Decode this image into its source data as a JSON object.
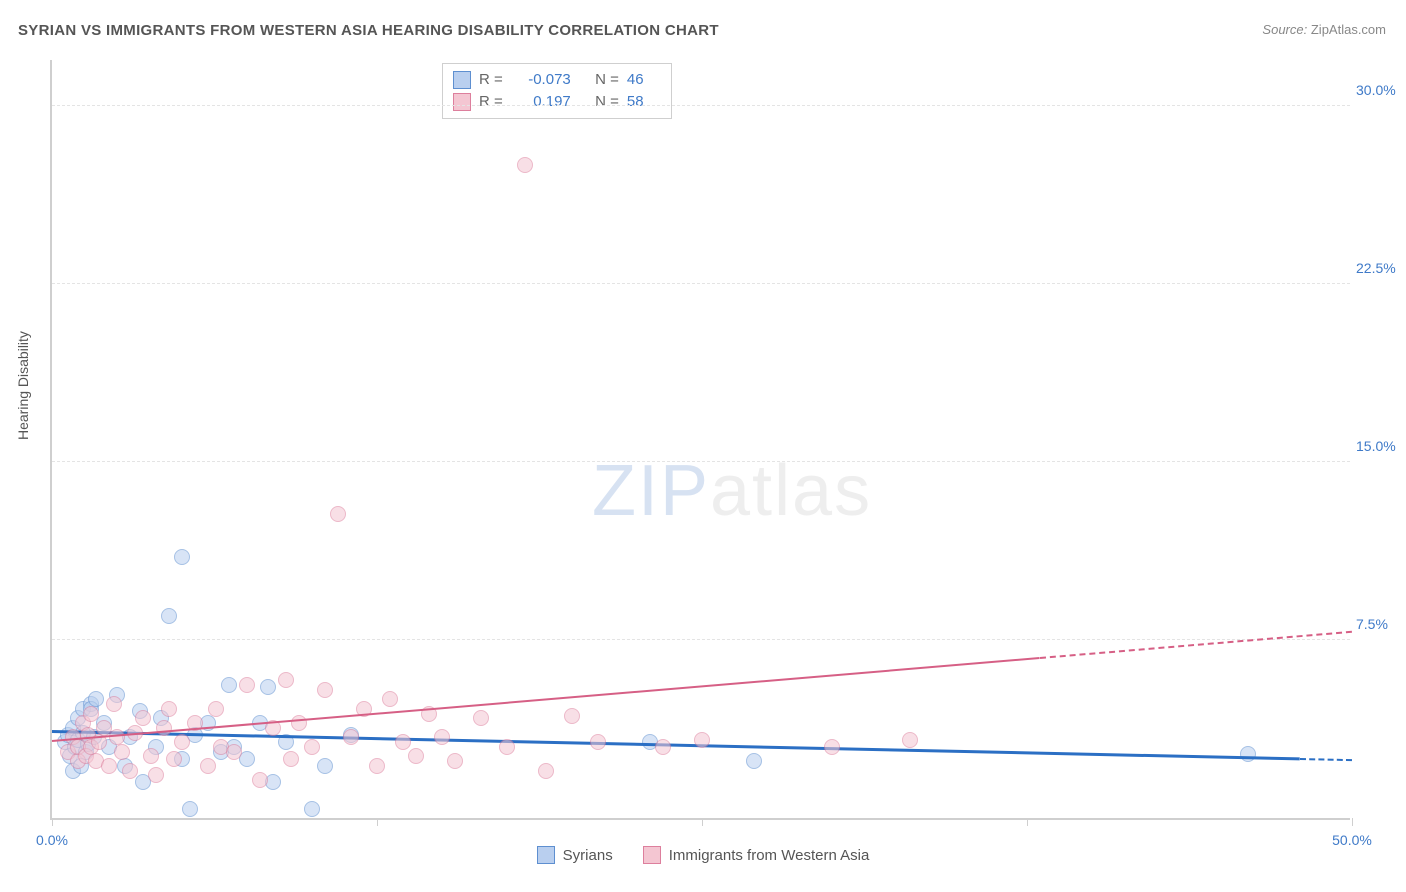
{
  "title": "SYRIAN VS IMMIGRANTS FROM WESTERN ASIA HEARING DISABILITY CORRELATION CHART",
  "source": {
    "label": "Source:",
    "name": "ZipAtlas.com"
  },
  "y_axis_title": "Hearing Disability",
  "watermark": {
    "part1": "ZIP",
    "part2": "atlas"
  },
  "chart": {
    "type": "scatter",
    "xlim": [
      0,
      50
    ],
    "ylim": [
      0,
      32
    ],
    "x_ticks": [
      0,
      12.5,
      25,
      37.5,
      50
    ],
    "x_tick_labels": [
      "0.0%",
      "",
      "",
      "",
      "50.0%"
    ],
    "y_grid": [
      7.5,
      15.0,
      22.5,
      30.0
    ],
    "y_grid_labels": [
      "7.5%",
      "15.0%",
      "22.5%",
      "30.0%"
    ],
    "background_color": "#ffffff",
    "grid_color": "#e4e4e4",
    "axis_color": "#cfcfcf",
    "tick_label_color": "#3f7ac8",
    "marker_radius": 8,
    "marker_border_width": 1.2,
    "series": [
      {
        "name": "Syrians",
        "fill": "#b9cfef",
        "stroke": "#5e8fd0",
        "fill_opacity": 0.55,
        "stats": {
          "R": "-0.073",
          "N": "46"
        },
        "trend": {
          "x1": 0,
          "y1": 3.6,
          "x2": 50,
          "y2": 2.4,
          "color": "#2b6fc4",
          "width": 2.5,
          "dash_after_x": 48
        },
        "points": [
          [
            0.5,
            3.2
          ],
          [
            0.6,
            3.5
          ],
          [
            0.7,
            2.6
          ],
          [
            0.8,
            3.8
          ],
          [
            0.8,
            2.0
          ],
          [
            0.9,
            3.0
          ],
          [
            1.0,
            4.2
          ],
          [
            1.0,
            3.3
          ],
          [
            1.1,
            2.2
          ],
          [
            1.2,
            4.6
          ],
          [
            1.2,
            3.6
          ],
          [
            1.3,
            2.8
          ],
          [
            1.4,
            3.1
          ],
          [
            1.5,
            4.8
          ],
          [
            1.5,
            4.6
          ],
          [
            1.6,
            3.4
          ],
          [
            1.7,
            5.0
          ],
          [
            2.0,
            4.0
          ],
          [
            2.2,
            3.0
          ],
          [
            2.5,
            5.2
          ],
          [
            2.8,
            2.2
          ],
          [
            3.0,
            3.4
          ],
          [
            3.4,
            4.5
          ],
          [
            3.5,
            1.5
          ],
          [
            4.0,
            3.0
          ],
          [
            4.2,
            4.2
          ],
          [
            4.5,
            8.5
          ],
          [
            5.0,
            11.0
          ],
          [
            5.0,
            2.5
          ],
          [
            5.3,
            0.4
          ],
          [
            5.5,
            3.5
          ],
          [
            6.0,
            4.0
          ],
          [
            6.5,
            2.8
          ],
          [
            6.8,
            5.6
          ],
          [
            7.0,
            3.0
          ],
          [
            7.5,
            2.5
          ],
          [
            8.0,
            4.0
          ],
          [
            8.3,
            5.5
          ],
          [
            8.5,
            1.5
          ],
          [
            9.0,
            3.2
          ],
          [
            10.0,
            0.4
          ],
          [
            10.5,
            2.2
          ],
          [
            11.5,
            3.5
          ],
          [
            23.0,
            3.2
          ],
          [
            27.0,
            2.4
          ],
          [
            46.0,
            2.7
          ]
        ]
      },
      {
        "name": "Immigrants from Western Asia",
        "fill": "#f4c6d2",
        "stroke": "#dd7f9d",
        "fill_opacity": 0.55,
        "stats": {
          "R": "0.197",
          "N": "58"
        },
        "trend": {
          "x1": 0,
          "y1": 3.2,
          "x2": 50,
          "y2": 7.8,
          "color": "#d65f85",
          "width": 2,
          "dash_after_x": 38
        },
        "points": [
          [
            0.6,
            2.8
          ],
          [
            0.8,
            3.4
          ],
          [
            1.0,
            2.4
          ],
          [
            1.0,
            3.0
          ],
          [
            1.2,
            4.0
          ],
          [
            1.3,
            2.6
          ],
          [
            1.4,
            3.5
          ],
          [
            1.5,
            4.4
          ],
          [
            1.5,
            3.0
          ],
          [
            1.7,
            2.4
          ],
          [
            1.8,
            3.2
          ],
          [
            2.0,
            3.8
          ],
          [
            2.2,
            2.2
          ],
          [
            2.4,
            4.8
          ],
          [
            2.5,
            3.4
          ],
          [
            2.7,
            2.8
          ],
          [
            3.0,
            2.0
          ],
          [
            3.2,
            3.6
          ],
          [
            3.5,
            4.2
          ],
          [
            3.8,
            2.6
          ],
          [
            4.0,
            1.8
          ],
          [
            4.3,
            3.8
          ],
          [
            4.5,
            4.6
          ],
          [
            4.7,
            2.5
          ],
          [
            5.0,
            3.2
          ],
          [
            5.5,
            4.0
          ],
          [
            6.0,
            2.2
          ],
          [
            6.3,
            4.6
          ],
          [
            6.5,
            3.0
          ],
          [
            7.0,
            2.8
          ],
          [
            7.5,
            5.6
          ],
          [
            8.0,
            1.6
          ],
          [
            8.5,
            3.8
          ],
          [
            9.0,
            5.8
          ],
          [
            9.2,
            2.5
          ],
          [
            9.5,
            4.0
          ],
          [
            10.0,
            3.0
          ],
          [
            10.5,
            5.4
          ],
          [
            11.0,
            12.8
          ],
          [
            11.5,
            3.4
          ],
          [
            12.0,
            4.6
          ],
          [
            12.5,
            2.2
          ],
          [
            13.0,
            5.0
          ],
          [
            13.5,
            3.2
          ],
          [
            14.0,
            2.6
          ],
          [
            14.5,
            4.4
          ],
          [
            15.0,
            3.4
          ],
          [
            15.5,
            2.4
          ],
          [
            16.5,
            4.2
          ],
          [
            17.5,
            3.0
          ],
          [
            18.2,
            27.5
          ],
          [
            19.0,
            2.0
          ],
          [
            20.0,
            4.3
          ],
          [
            21.0,
            3.2
          ],
          [
            23.5,
            3.0
          ],
          [
            25.0,
            3.3
          ],
          [
            30.0,
            3.0
          ],
          [
            33.0,
            3.3
          ]
        ]
      }
    ]
  },
  "legend": {
    "items": [
      {
        "label": "Syrians"
      },
      {
        "label": "Immigrants from Western Asia"
      }
    ]
  },
  "stats_box_labels": {
    "R": "R =",
    "N": "N ="
  }
}
